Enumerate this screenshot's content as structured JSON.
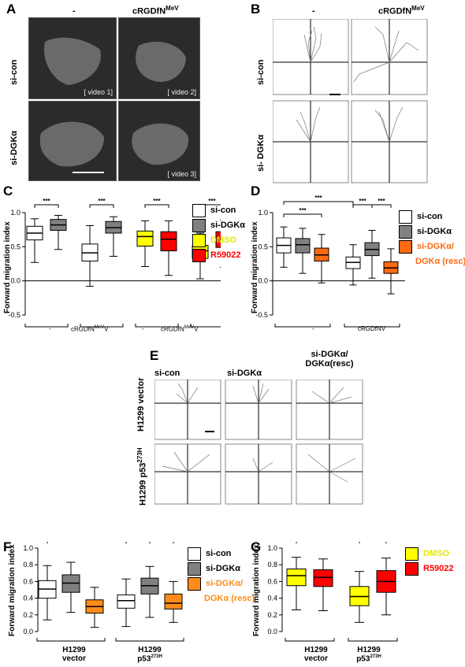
{
  "panels": {
    "A": {
      "letter": "A",
      "col1": "-",
      "col2": "cRGDfN",
      "col2_sup": "MeV",
      "row1": "si-con",
      "row2": "si-DGKα",
      "videos": [
        "[ video 1]",
        "[ video 2]",
        "[ video 3]"
      ]
    },
    "B": {
      "letter": "B",
      "col1": "-",
      "col2": "cRGDfN",
      "col2_sup": "MeV",
      "row1": "si-con",
      "row2": "si- DGKα"
    },
    "C": {
      "letter": "C",
      "ylabel": "Forward migration index",
      "yticks": [
        "1.0",
        "0.5",
        "0.0",
        "-0.5"
      ],
      "groups": [
        "-",
        "cRGDfN",
        "-",
        "cRGDfN"
      ],
      "group_sup": "MeV",
      "sig": [
        "***",
        "***",
        "***",
        "***"
      ],
      "legend": [
        {
          "label": "si-con",
          "color": "#ffffff",
          "text_color": "#000000"
        },
        {
          "label": "si-DGKα",
          "color": "#808080",
          "text_color": "#000000"
        },
        {
          "label": "DMSO",
          "color": "#ffff00",
          "text_color": "#ffff00"
        },
        {
          "label": "R59022",
          "color": "#ff0000",
          "text_color": "#ff0000"
        }
      ]
    },
    "D": {
      "letter": "D",
      "ylabel": "Forward migration index",
      "yticks": [
        "1.0",
        "0.5",
        "0.0",
        "-0.5"
      ],
      "groups": [
        "-",
        "cRGDfNV"
      ],
      "sig": [
        "***",
        "***",
        "***",
        "***"
      ],
      "legend": [
        {
          "label": "si-con",
          "color": "#ffffff",
          "text_color": "#000000"
        },
        {
          "label": "si-DGKα",
          "color": "#808080",
          "text_color": "#000000"
        },
        {
          "label": "si-DGKα/",
          "color": "#ff6a13",
          "text_color": "#ff6a13"
        },
        {
          "label": "DGKα (resc)",
          "color": null,
          "text_color": "#ff6a13"
        }
      ]
    },
    "E": {
      "letter": "E",
      "cols": [
        "si-con",
        "si-DGKα",
        "si-DGKα/",
        "DGKα(resc)"
      ],
      "row1": "H1299 vector",
      "row2": "H1299 p53",
      "row2_sup": "273H"
    },
    "F": {
      "letter": "F",
      "ylabel": "Forward migration index",
      "yticks": [
        "1.0",
        "0.8",
        "0.6",
        "0.4",
        "0.2",
        "0.0"
      ],
      "groups": [
        "H1299",
        "vector",
        "H1299",
        "p53"
      ],
      "group_sup": "273H",
      "sig": [
        "***",
        "***",
        "***"
      ],
      "legend": [
        {
          "label": "si-con",
          "color": "#ffffff",
          "text_color": "#000000"
        },
        {
          "label": "si-DGKα",
          "color": "#808080",
          "text_color": "#000000"
        },
        {
          "label": "si-DGKα/",
          "color": "#ff8c1a",
          "text_color": "#ff8c1a"
        },
        {
          "label": "DGKα (resc)",
          "color": null,
          "text_color": "#ff8c1a"
        }
      ]
    },
    "G": {
      "letter": "G",
      "ylabel": "Forward migration index",
      "yticks": [
        "1.0",
        "0.8",
        "0.6",
        "0.4",
        "0.2",
        "0.0"
      ],
      "groups": [
        "H1299",
        "vector",
        "H1299",
        "p53"
      ],
      "group_sup": "273H",
      "sig": [
        "***",
        "***"
      ],
      "legend": [
        {
          "label": "DMSO",
          "color": "#ffff00",
          "text_color": "#ffff00"
        },
        {
          "label": "R59022",
          "color": "#ff0000",
          "text_color": "#ff0000"
        }
      ]
    }
  },
  "chart_data": [
    {
      "type": "box",
      "panel": "C",
      "ylim": [
        -0.5,
        1.0
      ],
      "ylabel": "Forward migration index",
      "boxes": [
        {
          "color": "#ffffff",
          "min": 0.27,
          "q1": 0.6,
          "median": 0.7,
          "q3": 0.8,
          "max": 0.91
        },
        {
          "color": "#808080",
          "min": 0.46,
          "q1": 0.74,
          "median": 0.82,
          "q3": 0.9,
          "max": 0.96
        },
        {
          "color": "#ffffff",
          "min": -0.08,
          "q1": 0.29,
          "median": 0.41,
          "q3": 0.54,
          "max": 0.81
        },
        {
          "color": "#808080",
          "min": 0.36,
          "q1": 0.7,
          "median": 0.78,
          "q3": 0.87,
          "max": 0.94
        },
        {
          "color": "#ffff00",
          "min": 0.21,
          "q1": 0.51,
          "median": 0.65,
          "q3": 0.73,
          "max": 0.88
        },
        {
          "color": "#ff0000",
          "min": 0.08,
          "q1": 0.44,
          "median": 0.61,
          "q3": 0.72,
          "max": 0.88
        },
        {
          "color": "#ffff00",
          "min": 0.03,
          "q1": 0.33,
          "median": 0.44,
          "q3": 0.52,
          "max": 0.7
        },
        {
          "color": "#ff0000",
          "min": 0.2,
          "q1": 0.49,
          "median": 0.6,
          "q3": 0.72,
          "max": 0.89
        }
      ]
    },
    {
      "type": "box",
      "panel": "D",
      "ylim": [
        -0.5,
        1.0
      ],
      "ylabel": "Forward migration index",
      "boxes": [
        {
          "color": "#ffffff",
          "min": 0.2,
          "q1": 0.41,
          "median": 0.52,
          "q3": 0.63,
          "max": 0.79
        },
        {
          "color": "#808080",
          "min": 0.11,
          "q1": 0.41,
          "median": 0.53,
          "q3": 0.62,
          "max": 0.77
        },
        {
          "color": "#ff6a13",
          "min": -0.03,
          "q1": 0.29,
          "median": 0.38,
          "q3": 0.48,
          "max": 0.68
        },
        {
          "color": "#ffffff",
          "min": -0.06,
          "q1": 0.18,
          "median": 0.27,
          "q3": 0.35,
          "max": 0.53
        },
        {
          "color": "#808080",
          "min": 0.04,
          "q1": 0.37,
          "median": 0.46,
          "q3": 0.56,
          "max": 0.74
        },
        {
          "color": "#ff6a13",
          "min": -0.19,
          "q1": 0.11,
          "median": 0.19,
          "q3": 0.28,
          "max": 0.47
        }
      ]
    },
    {
      "type": "box",
      "panel": "F",
      "ylim": [
        0.0,
        1.0
      ],
      "ylabel": "Forward migration index",
      "boxes": [
        {
          "color": "#ffffff",
          "min": 0.14,
          "q1": 0.4,
          "median": 0.51,
          "q3": 0.61,
          "max": 0.79
        },
        {
          "color": "#808080",
          "min": 0.23,
          "q1": 0.47,
          "median": 0.58,
          "q3": 0.68,
          "max": 0.83
        },
        {
          "color": "#ff8c1a",
          "min": 0.05,
          "q1": 0.22,
          "median": 0.3,
          "q3": 0.38,
          "max": 0.53
        },
        {
          "color": "#ffffff",
          "min": 0.06,
          "q1": 0.28,
          "median": 0.37,
          "q3": 0.44,
          "max": 0.63
        },
        {
          "color": "#808080",
          "min": 0.17,
          "q1": 0.45,
          "median": 0.55,
          "q3": 0.64,
          "max": 0.78
        },
        {
          "color": "#ff8c1a",
          "min": 0.11,
          "q1": 0.27,
          "median": 0.34,
          "q3": 0.45,
          "max": 0.6
        }
      ]
    },
    {
      "type": "box",
      "panel": "G",
      "ylim": [
        0.0,
        1.0
      ],
      "ylabel": "Forward migration index",
      "boxes": [
        {
          "color": "#ffff00",
          "min": 0.26,
          "q1": 0.55,
          "median": 0.67,
          "q3": 0.75,
          "max": 0.89
        },
        {
          "color": "#ff0000",
          "min": 0.25,
          "q1": 0.54,
          "median": 0.65,
          "q3": 0.74,
          "max": 0.87
        },
        {
          "color": "#ffff00",
          "min": 0.11,
          "q1": 0.31,
          "median": 0.42,
          "q3": 0.54,
          "max": 0.72
        },
        {
          "color": "#ff0000",
          "min": 0.2,
          "q1": 0.47,
          "median": 0.6,
          "q3": 0.73,
          "max": 0.88
        }
      ]
    }
  ]
}
